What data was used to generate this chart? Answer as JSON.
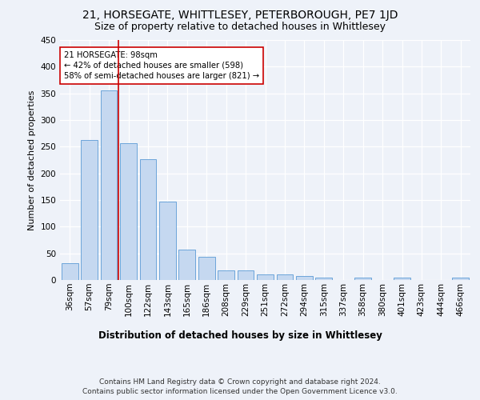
{
  "title1": "21, HORSEGATE, WHITTLESEY, PETERBOROUGH, PE7 1JD",
  "title2": "Size of property relative to detached houses in Whittlesey",
  "xlabel": "Distribution of detached houses by size in Whittlesey",
  "ylabel": "Number of detached properties",
  "categories": [
    "36sqm",
    "57sqm",
    "79sqm",
    "100sqm",
    "122sqm",
    "143sqm",
    "165sqm",
    "186sqm",
    "208sqm",
    "229sqm",
    "251sqm",
    "272sqm",
    "294sqm",
    "315sqm",
    "337sqm",
    "358sqm",
    "380sqm",
    "401sqm",
    "423sqm",
    "444sqm",
    "466sqm"
  ],
  "values": [
    31,
    262,
    356,
    257,
    226,
    147,
    57,
    43,
    18,
    18,
    10,
    10,
    7,
    5,
    0,
    4,
    0,
    4,
    0,
    0,
    4
  ],
  "bar_color": "#c5d8f0",
  "bar_edge_color": "#5b9bd5",
  "annotation_text": "21 HORSEGATE: 98sqm\n← 42% of detached houses are smaller (598)\n58% of semi-detached houses are larger (821) →",
  "annotation_box_color": "#ffffff",
  "annotation_box_edge_color": "#cc0000",
  "vline_color": "#cc0000",
  "vline_x_index": 2.5,
  "ylim": [
    0,
    450
  ],
  "yticks": [
    0,
    50,
    100,
    150,
    200,
    250,
    300,
    350,
    400,
    450
  ],
  "footer": "Contains HM Land Registry data © Crown copyright and database right 2024.\nContains public sector information licensed under the Open Government Licence v3.0.",
  "background_color": "#eef2f9",
  "grid_color": "#ffffff",
  "title1_fontsize": 10,
  "title2_fontsize": 9,
  "xlabel_fontsize": 8.5,
  "ylabel_fontsize": 8,
  "tick_fontsize": 7.5,
  "footer_fontsize": 6.5
}
